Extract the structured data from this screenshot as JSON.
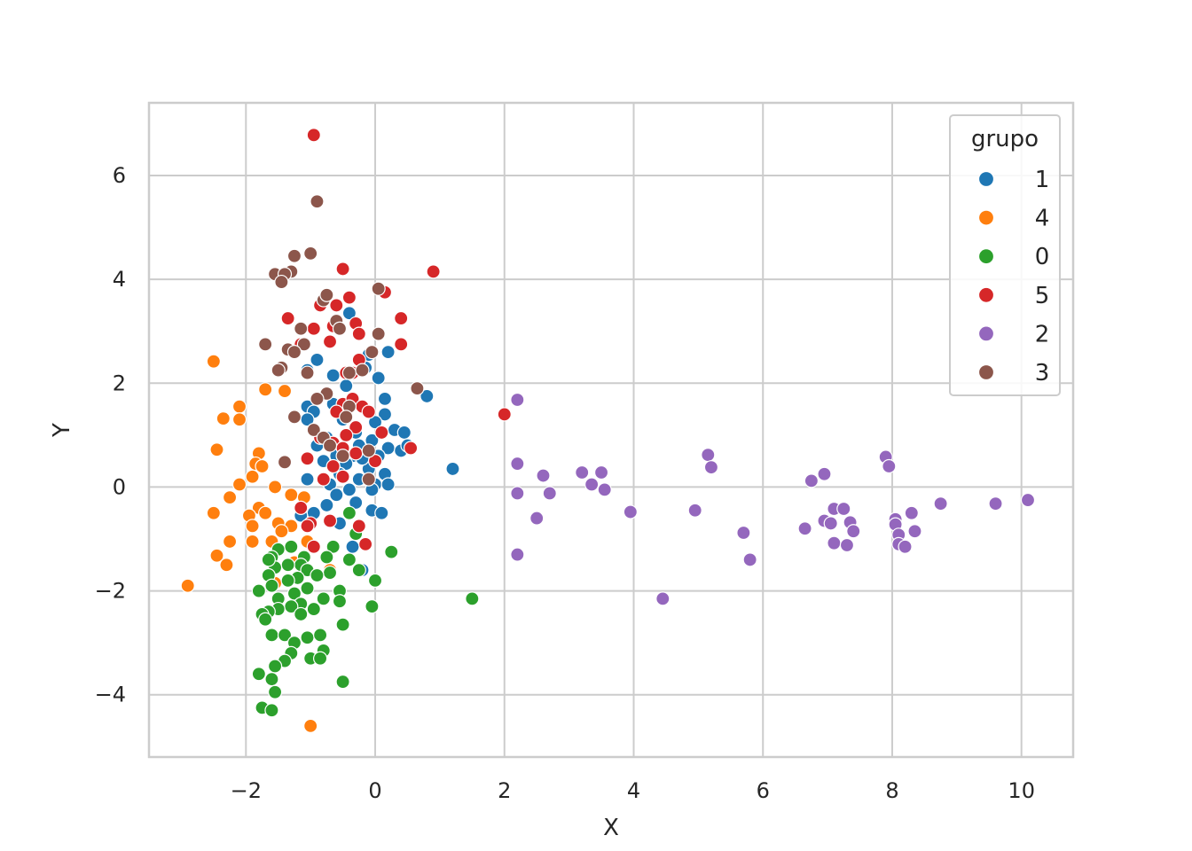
{
  "chart_data": {
    "type": "scatter",
    "title": "",
    "xlabel": "X",
    "ylabel": "Y",
    "xlim": [
      -3.5,
      10.8
    ],
    "ylim": [
      -5.2,
      7.4
    ],
    "xticks": [
      -2,
      0,
      2,
      4,
      6,
      8,
      10
    ],
    "yticks": [
      -4,
      -2,
      0,
      2,
      4,
      6
    ],
    "xtick_labels": [
      "−2",
      "0",
      "2",
      "4",
      "6",
      "8",
      "10"
    ],
    "ytick_labels": [
      "−4",
      "−2",
      "0",
      "2",
      "4",
      "6"
    ],
    "grid": true,
    "legend": {
      "title": "grupo",
      "position": "top-right"
    },
    "series": [
      {
        "name": "1",
        "color": "#1f77b4",
        "points": [
          [
            -0.4,
            3.35
          ],
          [
            -0.9,
            2.45
          ],
          [
            -1.05,
            2.25
          ],
          [
            -0.65,
            2.15
          ],
          [
            0.2,
            2.6
          ],
          [
            -0.1,
            2.55
          ],
          [
            0.05,
            2.1
          ],
          [
            -0.15,
            2.3
          ],
          [
            0.8,
            1.75
          ],
          [
            0.15,
            1.7
          ],
          [
            -1.05,
            1.55
          ],
          [
            -0.95,
            1.45
          ],
          [
            -1.05,
            1.3
          ],
          [
            -0.65,
            1.6
          ],
          [
            0.15,
            1.4
          ],
          [
            0.0,
            1.25
          ],
          [
            0.3,
            1.1
          ],
          [
            0.45,
            1.05
          ],
          [
            -0.5,
            1.3
          ],
          [
            -0.3,
            1.05
          ],
          [
            -0.05,
            0.9
          ],
          [
            -0.75,
            0.95
          ],
          [
            -0.9,
            0.8
          ],
          [
            0.2,
            0.75
          ],
          [
            0.4,
            0.7
          ],
          [
            -0.25,
            0.8
          ],
          [
            -0.6,
            0.6
          ],
          [
            -0.35,
            0.6
          ],
          [
            0.05,
            0.6
          ],
          [
            0.5,
            0.8
          ],
          [
            -0.8,
            0.5
          ],
          [
            -0.45,
            0.45
          ],
          [
            -0.1,
            0.35
          ],
          [
            0.15,
            0.25
          ],
          [
            -0.55,
            0.25
          ],
          [
            -0.25,
            0.15
          ],
          [
            0.0,
            0.05
          ],
          [
            -1.05,
            0.15
          ],
          [
            -0.7,
            0.05
          ],
          [
            -0.4,
            -0.05
          ],
          [
            -0.05,
            -0.05
          ],
          [
            0.2,
            0.05
          ],
          [
            -0.6,
            -0.15
          ],
          [
            -0.3,
            -0.3
          ],
          [
            -0.05,
            -0.45
          ],
          [
            0.1,
            -0.5
          ],
          [
            -0.75,
            -0.35
          ],
          [
            -0.95,
            -0.5
          ],
          [
            -1.15,
            -0.55
          ],
          [
            -0.55,
            -0.7
          ],
          [
            -0.35,
            -1.15
          ],
          [
            -0.2,
            -1.6
          ],
          [
            1.2,
            0.35
          ],
          [
            -0.2,
            0.55
          ],
          [
            -0.45,
            1.95
          ]
        ]
      },
      {
        "name": "4",
        "color": "#ff7f0e",
        "points": [
          [
            -2.5,
            2.42
          ],
          [
            -1.7,
            1.88
          ],
          [
            -1.4,
            1.85
          ],
          [
            -2.1,
            1.55
          ],
          [
            -2.35,
            1.32
          ],
          [
            -2.1,
            1.3
          ],
          [
            -2.45,
            0.72
          ],
          [
            -1.8,
            0.65
          ],
          [
            -1.85,
            0.45
          ],
          [
            -1.75,
            0.4
          ],
          [
            -1.9,
            0.2
          ],
          [
            -2.1,
            0.05
          ],
          [
            -1.55,
            0.0
          ],
          [
            -1.3,
            -0.15
          ],
          [
            -2.25,
            -0.2
          ],
          [
            -1.1,
            -0.2
          ],
          [
            -1.8,
            -0.4
          ],
          [
            -1.7,
            -0.5
          ],
          [
            -2.5,
            -0.5
          ],
          [
            -1.95,
            -0.55
          ],
          [
            -1.9,
            -0.75
          ],
          [
            -1.5,
            -0.7
          ],
          [
            -1.3,
            -0.75
          ],
          [
            -1.45,
            -0.85
          ],
          [
            -2.25,
            -1.05
          ],
          [
            -1.9,
            -1.05
          ],
          [
            -1.6,
            -1.05
          ],
          [
            -1.05,
            -1.05
          ],
          [
            -2.45,
            -1.32
          ],
          [
            -2.3,
            -1.5
          ],
          [
            -1.25,
            -1.45
          ],
          [
            -0.7,
            -1.6
          ],
          [
            -2.9,
            -1.9
          ],
          [
            -1.55,
            -1.85
          ],
          [
            -1.0,
            -4.6
          ]
        ]
      },
      {
        "name": "0",
        "color": "#2ca02c",
        "points": [
          [
            -0.4,
            -0.5
          ],
          [
            -0.3,
            -0.9
          ],
          [
            0.25,
            -1.25
          ],
          [
            -0.65,
            -1.15
          ],
          [
            -1.3,
            -1.15
          ],
          [
            -1.5,
            -1.2
          ],
          [
            -0.75,
            -1.35
          ],
          [
            -1.1,
            -1.35
          ],
          [
            -1.6,
            -1.35
          ],
          [
            -0.4,
            -1.4
          ],
          [
            -1.15,
            -1.5
          ],
          [
            -1.35,
            -1.5
          ],
          [
            -1.55,
            -1.55
          ],
          [
            -1.05,
            -1.6
          ],
          [
            -0.25,
            -1.6
          ],
          [
            -0.7,
            -1.65
          ],
          [
            -0.9,
            -1.7
          ],
          [
            -1.2,
            -1.75
          ],
          [
            -1.35,
            -1.8
          ],
          [
            -1.65,
            -1.7
          ],
          [
            -1.6,
            -1.9
          ],
          [
            -1.05,
            -1.95
          ],
          [
            0.0,
            -1.8
          ],
          [
            -1.8,
            -2.0
          ],
          [
            -0.55,
            -2.0
          ],
          [
            -1.25,
            -2.05
          ],
          [
            -0.8,
            -2.15
          ],
          [
            -1.5,
            -2.15
          ],
          [
            -1.15,
            -2.25
          ],
          [
            -1.3,
            -2.3
          ],
          [
            -0.55,
            -2.2
          ],
          [
            -1.5,
            -2.35
          ],
          [
            -1.65,
            -2.4
          ],
          [
            -1.75,
            -2.45
          ],
          [
            -1.7,
            -2.55
          ],
          [
            -1.15,
            -2.45
          ],
          [
            -0.95,
            -2.35
          ],
          [
            -0.5,
            -2.65
          ],
          [
            -0.05,
            -2.3
          ],
          [
            -1.6,
            -2.85
          ],
          [
            -1.4,
            -2.85
          ],
          [
            -1.05,
            -2.9
          ],
          [
            -0.85,
            -2.85
          ],
          [
            -1.25,
            -3.0
          ],
          [
            -1.3,
            -3.2
          ],
          [
            -0.8,
            -3.15
          ],
          [
            -1.0,
            -3.3
          ],
          [
            -1.4,
            -3.35
          ],
          [
            -0.85,
            -3.3
          ],
          [
            -1.55,
            -3.45
          ],
          [
            -1.8,
            -3.6
          ],
          [
            -1.6,
            -3.7
          ],
          [
            -1.55,
            -3.95
          ],
          [
            -0.5,
            -3.75
          ],
          [
            -1.75,
            -4.25
          ],
          [
            -1.6,
            -4.3
          ],
          [
            1.5,
            -2.15
          ],
          [
            -1.65,
            -1.4
          ]
        ]
      },
      {
        "name": "5",
        "color": "#d62728",
        "points": [
          [
            -0.95,
            6.78
          ],
          [
            0.9,
            4.15
          ],
          [
            -0.5,
            4.2
          ],
          [
            -0.75,
            3.7
          ],
          [
            0.15,
            3.75
          ],
          [
            -0.4,
            3.65
          ],
          [
            -0.85,
            3.5
          ],
          [
            -0.6,
            3.5
          ],
          [
            -1.35,
            3.25
          ],
          [
            0.4,
            3.25
          ],
          [
            -0.3,
            3.15
          ],
          [
            -0.95,
            3.05
          ],
          [
            -0.65,
            3.1
          ],
          [
            -0.25,
            2.95
          ],
          [
            -0.7,
            2.8
          ],
          [
            0.4,
            2.75
          ],
          [
            -1.15,
            2.75
          ],
          [
            -0.25,
            2.45
          ],
          [
            -0.35,
            2.2
          ],
          [
            -0.45,
            2.2
          ],
          [
            2.0,
            1.4
          ],
          [
            -0.5,
            1.6
          ],
          [
            -0.35,
            1.7
          ],
          [
            -0.2,
            1.55
          ],
          [
            -0.1,
            1.45
          ],
          [
            -0.6,
            1.45
          ],
          [
            -0.3,
            1.15
          ],
          [
            -0.45,
            1.0
          ],
          [
            0.1,
            1.05
          ],
          [
            -0.85,
            0.95
          ],
          [
            -0.65,
            0.85
          ],
          [
            -0.5,
            0.75
          ],
          [
            -0.3,
            0.65
          ],
          [
            0.55,
            0.75
          ],
          [
            -1.05,
            0.55
          ],
          [
            0.0,
            0.5
          ],
          [
            -0.65,
            0.4
          ],
          [
            -0.5,
            0.2
          ],
          [
            -0.8,
            0.15
          ],
          [
            -1.15,
            -0.4
          ],
          [
            -0.7,
            -0.65
          ],
          [
            -1.0,
            -0.7
          ],
          [
            -1.05,
            -0.75
          ],
          [
            -0.25,
            -0.75
          ],
          [
            -0.15,
            -1.1
          ],
          [
            -0.95,
            -1.15
          ]
        ]
      },
      {
        "name": "2",
        "color": "#9467bd",
        "points": [
          [
            2.2,
            1.68
          ],
          [
            2.2,
            0.45
          ],
          [
            2.6,
            0.22
          ],
          [
            2.2,
            -0.12
          ],
          [
            2.7,
            -0.12
          ],
          [
            2.5,
            -0.6
          ],
          [
            2.2,
            -1.3
          ],
          [
            3.2,
            0.28
          ],
          [
            3.35,
            0.05
          ],
          [
            3.5,
            0.28
          ],
          [
            3.55,
            -0.05
          ],
          [
            3.95,
            -0.48
          ],
          [
            4.45,
            -2.15
          ],
          [
            4.95,
            -0.45
          ],
          [
            5.15,
            0.62
          ],
          [
            5.2,
            0.38
          ],
          [
            5.7,
            -0.88
          ],
          [
            5.8,
            -1.4
          ],
          [
            6.65,
            -0.8
          ],
          [
            6.75,
            0.12
          ],
          [
            6.95,
            0.25
          ],
          [
            6.95,
            -0.65
          ],
          [
            7.05,
            -0.7
          ],
          [
            7.1,
            -0.42
          ],
          [
            7.1,
            -1.08
          ],
          [
            7.25,
            -0.42
          ],
          [
            7.3,
            -1.12
          ],
          [
            7.35,
            -0.68
          ],
          [
            7.4,
            -0.85
          ],
          [
            7.9,
            0.58
          ],
          [
            7.95,
            0.4
          ],
          [
            8.05,
            -0.62
          ],
          [
            8.05,
            -0.72
          ],
          [
            8.1,
            -0.92
          ],
          [
            8.1,
            -1.1
          ],
          [
            8.2,
            -1.15
          ],
          [
            8.3,
            -0.5
          ],
          [
            8.35,
            -0.85
          ],
          [
            8.75,
            -0.32
          ],
          [
            9.6,
            -0.32
          ],
          [
            10.1,
            -0.25
          ]
        ]
      },
      {
        "name": "3",
        "color": "#8c564b",
        "points": [
          [
            -0.9,
            5.5
          ],
          [
            -1.0,
            4.5
          ],
          [
            -1.25,
            4.45
          ],
          [
            -1.3,
            4.15
          ],
          [
            -1.55,
            4.1
          ],
          [
            -1.4,
            4.1
          ],
          [
            -1.45,
            3.95
          ],
          [
            0.05,
            3.82
          ],
          [
            -0.8,
            3.6
          ],
          [
            -0.75,
            3.7
          ],
          [
            -0.6,
            3.2
          ],
          [
            -0.55,
            3.05
          ],
          [
            -1.15,
            3.05
          ],
          [
            0.05,
            2.95
          ],
          [
            -1.7,
            2.75
          ],
          [
            -1.1,
            2.75
          ],
          [
            -1.35,
            2.65
          ],
          [
            -1.25,
            2.6
          ],
          [
            -0.05,
            2.6
          ],
          [
            -1.45,
            2.3
          ],
          [
            -1.5,
            2.25
          ],
          [
            -1.05,
            2.2
          ],
          [
            -0.4,
            2.2
          ],
          [
            -0.2,
            2.25
          ],
          [
            -0.75,
            1.8
          ],
          [
            0.65,
            1.9
          ],
          [
            -0.9,
            1.7
          ],
          [
            -0.4,
            1.55
          ],
          [
            -1.25,
            1.35
          ],
          [
            -0.45,
            1.35
          ],
          [
            -0.95,
            1.1
          ],
          [
            -0.8,
            0.95
          ],
          [
            -0.7,
            0.8
          ],
          [
            -0.1,
            0.7
          ],
          [
            -1.4,
            0.48
          ],
          [
            -0.5,
            0.6
          ],
          [
            -0.1,
            0.15
          ]
        ]
      }
    ]
  }
}
